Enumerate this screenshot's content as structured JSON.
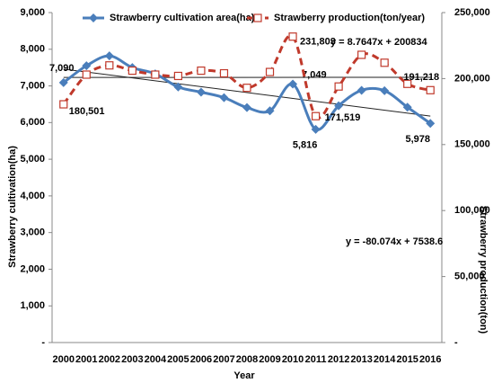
{
  "chart_data": {
    "type": "line",
    "x_label": "Year",
    "y_label": "Strawberry cultivation(ha)",
    "y2_label": "Strawberry production(ton)",
    "categories": [
      "2000",
      "2001",
      "2002",
      "2003",
      "2004",
      "2005",
      "2006",
      "2007",
      "2008",
      "2009",
      "2010",
      "2011",
      "2012",
      "2013",
      "2014",
      "2015",
      "2016"
    ],
    "ylim": [
      0,
      9000
    ],
    "yticks": [
      {
        "value": 0,
        "label": "-"
      },
      {
        "value": 1000,
        "label": "1,000"
      },
      {
        "value": 2000,
        "label": "2,000"
      },
      {
        "value": 3000,
        "label": "3,000"
      },
      {
        "value": 4000,
        "label": "4,000"
      },
      {
        "value": 5000,
        "label": "5,000"
      },
      {
        "value": 6000,
        "label": "6,000"
      },
      {
        "value": 7000,
        "label": "7,000"
      },
      {
        "value": 8000,
        "label": "8,000"
      },
      {
        "value": 9000,
        "label": "9,000"
      }
    ],
    "y2lim": [
      0,
      250000
    ],
    "y2ticks": [
      {
        "value": 0,
        "label": "-"
      },
      {
        "value": 50000,
        "label": "50,000"
      },
      {
        "value": 100000,
        "label": "100,000"
      },
      {
        "value": 150000,
        "label": "150,000"
      },
      {
        "value": 200000,
        "label": "200,000"
      },
      {
        "value": 250000,
        "label": "250,000"
      }
    ],
    "legend": "top",
    "series": [
      {
        "name": "Strawberry cultivation area(ha)",
        "color": "#4a7ebb",
        "marker": "diamond",
        "values": [
          7090,
          7550,
          7820,
          7500,
          7330,
          6970,
          6830,
          6680,
          6410,
          6320,
          7049,
          5816,
          6460,
          6880,
          6870,
          6420,
          5978
        ],
        "value_labels": [
          "7,090",
          null,
          null,
          null,
          null,
          null,
          null,
          null,
          null,
          null,
          "7,049",
          "5,816",
          null,
          null,
          null,
          null,
          "5,978"
        ]
      },
      {
        "name": "Strawberry production(ton/year)",
        "color": "#c0392b",
        "marker": "square",
        "axis": "y2",
        "dashed": true,
        "values": [
          180501,
          203000,
          210000,
          206000,
          203000,
          202000,
          206000,
          204000,
          193000,
          205000,
          231803,
          171519,
          194000,
          218000,
          212000,
          196000,
          191218
        ],
        "value_labels": [
          "180,501",
          null,
          null,
          null,
          null,
          null,
          null,
          null,
          null,
          null,
          "231,803",
          "171,519",
          null,
          null,
          null,
          null,
          "191,218"
        ]
      }
    ],
    "trendlines": [
      {
        "label": "y = 8.7647x + 200834",
        "slope": 8.7647,
        "intercept": 200834,
        "axis": "y2",
        "color": "#222"
      },
      {
        "label": "y = -80.074x + 7538.6",
        "slope": -80.074,
        "intercept": 7538.6,
        "color": "#222"
      }
    ]
  }
}
